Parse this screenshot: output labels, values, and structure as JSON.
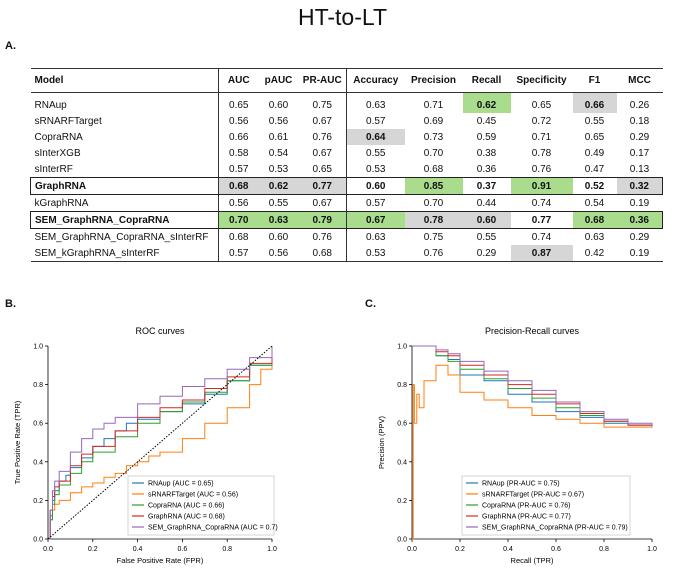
{
  "main_title": "HT-to-LT",
  "panels": {
    "a": "A.",
    "b": "B.",
    "c": "C."
  },
  "table": {
    "headers": [
      "Model",
      "AUC",
      "pAUC",
      "PR-AUC",
      "Accuracy",
      "Precision",
      "Recall",
      "Specificity",
      "F1",
      "MCC"
    ],
    "rows": [
      {
        "model": "RNAup",
        "values": [
          "0.65",
          "0.60",
          "0.75",
          "0.63",
          "0.71",
          "0.62",
          "0.65",
          "0.66",
          "0.26"
        ]
      },
      {
        "model": "sRNARFTarget",
        "values": [
          "0.56",
          "0.56",
          "0.67",
          "0.57",
          "0.69",
          "0.45",
          "0.72",
          "0.55",
          "0.18"
        ]
      },
      {
        "model": "CopraRNA",
        "values": [
          "0.66",
          "0.61",
          "0.76",
          "0.64",
          "0.73",
          "0.59",
          "0.71",
          "0.65",
          "0.29"
        ]
      },
      {
        "model": "sInterXGB",
        "values": [
          "0.58",
          "0.54",
          "0.67",
          "0.55",
          "0.70",
          "0.38",
          "0.78",
          "0.49",
          "0.17"
        ]
      },
      {
        "model": "sInterRF",
        "values": [
          "0.57",
          "0.53",
          "0.65",
          "0.53",
          "0.68",
          "0.36",
          "0.76",
          "0.47",
          "0.13"
        ]
      },
      {
        "model": "GraphRNA",
        "values": [
          "0.68",
          "0.62",
          "0.77",
          "0.60",
          "0.85",
          "0.37",
          "0.91",
          "0.52",
          "0.32"
        ]
      },
      {
        "model": "kGraphRNA",
        "values": [
          "0.56",
          "0.55",
          "0.67",
          "0.57",
          "0.70",
          "0.44",
          "0.74",
          "0.54",
          "0.19"
        ]
      },
      {
        "model": "SEM_GraphRNA_CopraRNA",
        "values": [
          "0.70",
          "0.63",
          "0.79",
          "0.67",
          "0.78",
          "0.60",
          "0.77",
          "0.68",
          "0.36"
        ]
      },
      {
        "model": "SEM_GraphRNA_CopraRNA_sInterRF",
        "values": [
          "0.68",
          "0.60",
          "0.76",
          "0.63",
          "0.75",
          "0.55",
          "0.74",
          "0.63",
          "0.29"
        ]
      },
      {
        "model": "SEM_kGraphRNA_sInterRF",
        "values": [
          "0.57",
          "0.56",
          "0.68",
          "0.53",
          "0.76",
          "0.29",
          "0.87",
          "0.42",
          "0.19"
        ]
      }
    ],
    "highlights": {
      "colors": {
        "green": "#a9dc8d",
        "gray": "#d6d6d6"
      },
      "cells": [
        {
          "row": 0,
          "col": 5,
          "color": "green"
        },
        {
          "row": 0,
          "col": 7,
          "color": "gray"
        },
        {
          "row": 2,
          "col": 3,
          "color": "gray"
        },
        {
          "row": 5,
          "col": 0,
          "color": "gray"
        },
        {
          "row": 5,
          "col": 1,
          "color": "gray"
        },
        {
          "row": 5,
          "col": 2,
          "color": "gray"
        },
        {
          "row": 5,
          "col": 4,
          "color": "green"
        },
        {
          "row": 5,
          "col": 6,
          "color": "green"
        },
        {
          "row": 5,
          "col": 8,
          "color": "gray"
        },
        {
          "row": 7,
          "col": 0,
          "color": "green"
        },
        {
          "row": 7,
          "col": 1,
          "color": "green"
        },
        {
          "row": 7,
          "col": 2,
          "color": "green"
        },
        {
          "row": 7,
          "col": 3,
          "color": "green"
        },
        {
          "row": 7,
          "col": 4,
          "color": "gray"
        },
        {
          "row": 7,
          "col": 5,
          "color": "gray"
        },
        {
          "row": 7,
          "col": 7,
          "color": "green"
        },
        {
          "row": 7,
          "col": 8,
          "color": "green"
        },
        {
          "row": 9,
          "col": 6,
          "color": "gray"
        }
      ],
      "boxed_rows": [
        5,
        7
      ]
    }
  },
  "colors": {
    "RNAup": "#1f77b4",
    "sRNARFTarget": "#ff7f0e",
    "CopraRNA": "#2ca02c",
    "GraphRNA": "#d62728",
    "SEM": "#9467bd",
    "random": "#000000"
  },
  "chart_data": [
    {
      "type": "line",
      "title": "ROC curves",
      "xlabel": "False Positive Rate (FPR)",
      "ylabel": "True Positive Rate (TPR)",
      "xlim": [
        0,
        1
      ],
      "ylim": [
        0,
        1
      ],
      "xticks": [
        "0.0",
        "0.2",
        "0.4",
        "0.6",
        "0.8",
        "1.0"
      ],
      "yticks": [
        "0.0",
        "0.2",
        "0.4",
        "0.6",
        "0.8",
        "1.0"
      ],
      "legend_position": "lower-right",
      "series": [
        {
          "name": "RNAup (AUC = 0.65)",
          "color_key": "RNAup",
          "x": [
            0,
            0.01,
            0.02,
            0.03,
            0.05,
            0.08,
            0.1,
            0.15,
            0.2,
            0.25,
            0.3,
            0.35,
            0.4,
            0.5,
            0.6,
            0.7,
            0.8,
            0.9,
            1.0
          ],
          "y": [
            0,
            0.12,
            0.2,
            0.25,
            0.3,
            0.33,
            0.37,
            0.42,
            0.48,
            0.52,
            0.56,
            0.6,
            0.62,
            0.66,
            0.7,
            0.75,
            0.82,
            0.9,
            1.0
          ]
        },
        {
          "name": "sRNARFTarget (AUC = 0.56)",
          "color_key": "sRNARFTarget",
          "x": [
            0,
            0.01,
            0.02,
            0.03,
            0.05,
            0.1,
            0.15,
            0.2,
            0.25,
            0.3,
            0.35,
            0.4,
            0.45,
            0.5,
            0.6,
            0.7,
            0.8,
            0.9,
            0.95,
            1.0
          ],
          "y": [
            0,
            0.1,
            0.15,
            0.18,
            0.2,
            0.24,
            0.27,
            0.29,
            0.32,
            0.34,
            0.38,
            0.4,
            0.43,
            0.45,
            0.52,
            0.6,
            0.68,
            0.8,
            0.88,
            1.0
          ]
        },
        {
          "name": "CopraRNA (AUC = 0.66)",
          "color_key": "CopraRNA",
          "x": [
            0,
            0.01,
            0.02,
            0.03,
            0.05,
            0.1,
            0.15,
            0.2,
            0.3,
            0.4,
            0.5,
            0.6,
            0.7,
            0.8,
            0.9,
            1.0
          ],
          "y": [
            0,
            0.1,
            0.18,
            0.23,
            0.28,
            0.34,
            0.4,
            0.45,
            0.53,
            0.6,
            0.66,
            0.71,
            0.76,
            0.82,
            0.9,
            1.0
          ]
        },
        {
          "name": "GraphRNA (AUC = 0.68)",
          "color_key": "GraphRNA",
          "x": [
            0,
            0.01,
            0.02,
            0.03,
            0.05,
            0.1,
            0.15,
            0.2,
            0.3,
            0.4,
            0.5,
            0.6,
            0.7,
            0.8,
            0.9,
            1.0
          ],
          "y": [
            0,
            0.15,
            0.22,
            0.27,
            0.3,
            0.38,
            0.44,
            0.48,
            0.56,
            0.63,
            0.68,
            0.72,
            0.78,
            0.84,
            0.91,
            1.0
          ]
        },
        {
          "name": "SEM_GraphRNA_CopraRNA (AUC = 0.7)",
          "color_key": "SEM",
          "x": [
            0,
            0.01,
            0.02,
            0.03,
            0.05,
            0.1,
            0.15,
            0.2,
            0.25,
            0.3,
            0.4,
            0.5,
            0.6,
            0.7,
            0.8,
            0.9,
            1.0
          ],
          "y": [
            0,
            0.15,
            0.25,
            0.3,
            0.35,
            0.45,
            0.52,
            0.57,
            0.6,
            0.63,
            0.7,
            0.74,
            0.79,
            0.83,
            0.88,
            0.94,
            1.0
          ]
        },
        {
          "name": "random",
          "color_key": "random",
          "dashed": true,
          "legend": false,
          "x": [
            0,
            1
          ],
          "y": [
            0,
            1
          ]
        }
      ]
    },
    {
      "type": "line",
      "title": "Precision-Recall curves",
      "xlabel": "Recall (TPR)",
      "ylabel": "Precision (PPV)",
      "xlim": [
        0,
        1
      ],
      "ylim": [
        0,
        1
      ],
      "xticks": [
        "0.0",
        "0.2",
        "0.4",
        "0.6",
        "0.8",
        "1.0"
      ],
      "yticks": [
        "0.0",
        "0.2",
        "0.4",
        "0.6",
        "0.8",
        "1.0"
      ],
      "legend_position": "lower-right",
      "series": [
        {
          "name": "RNAup (PR-AUC = 0.75)",
          "color_key": "RNAup",
          "x": [
            0,
            0.02,
            0.05,
            0.1,
            0.15,
            0.2,
            0.3,
            0.4,
            0.5,
            0.6,
            0.7,
            0.8,
            0.9,
            1.0
          ],
          "y": [
            1,
            1,
            1,
            0.95,
            0.93,
            0.85,
            0.82,
            0.75,
            0.71,
            0.66,
            0.63,
            0.6,
            0.59,
            0.58
          ]
        },
        {
          "name": "sRNARFTarget (PR-AUC = 0.67)",
          "color_key": "sRNARFTarget",
          "x": [
            0,
            0.005,
            0.01,
            0.02,
            0.03,
            0.05,
            0.1,
            0.15,
            0.2,
            0.3,
            0.4,
            0.5,
            0.6,
            0.7,
            0.8,
            0.9,
            1.0
          ],
          "y": [
            0,
            0.8,
            0.6,
            0.75,
            0.68,
            0.82,
            0.9,
            0.85,
            0.76,
            0.72,
            0.68,
            0.64,
            0.62,
            0.6,
            0.58,
            0.58,
            0.58
          ]
        },
        {
          "name": "CopraRNA (PR-AUC = 0.76)",
          "color_key": "CopraRNA",
          "x": [
            0,
            0.02,
            0.05,
            0.1,
            0.15,
            0.2,
            0.3,
            0.4,
            0.5,
            0.6,
            0.7,
            0.8,
            0.9,
            1.0
          ],
          "y": [
            1,
            1,
            1,
            0.95,
            0.92,
            0.88,
            0.83,
            0.78,
            0.73,
            0.68,
            0.64,
            0.61,
            0.59,
            0.58
          ]
        },
        {
          "name": "GraphRNA (PR-AUC = 0.77)",
          "color_key": "GraphRNA",
          "x": [
            0,
            0.02,
            0.05,
            0.1,
            0.15,
            0.2,
            0.3,
            0.4,
            0.5,
            0.6,
            0.7,
            0.8,
            0.9,
            1.0
          ],
          "y": [
            1,
            1,
            1,
            0.97,
            0.95,
            0.9,
            0.85,
            0.8,
            0.75,
            0.7,
            0.65,
            0.61,
            0.59,
            0.58
          ]
        },
        {
          "name": "SEM_GraphRNA_CopraRNA (PR-AUC = 0.79)",
          "color_key": "SEM",
          "x": [
            0,
            0.02,
            0.05,
            0.1,
            0.15,
            0.2,
            0.3,
            0.4,
            0.5,
            0.6,
            0.7,
            0.8,
            0.9,
            1.0
          ],
          "y": [
            1,
            1,
            1,
            0.98,
            0.96,
            0.92,
            0.87,
            0.82,
            0.77,
            0.71,
            0.66,
            0.62,
            0.6,
            0.58
          ]
        }
      ]
    }
  ]
}
